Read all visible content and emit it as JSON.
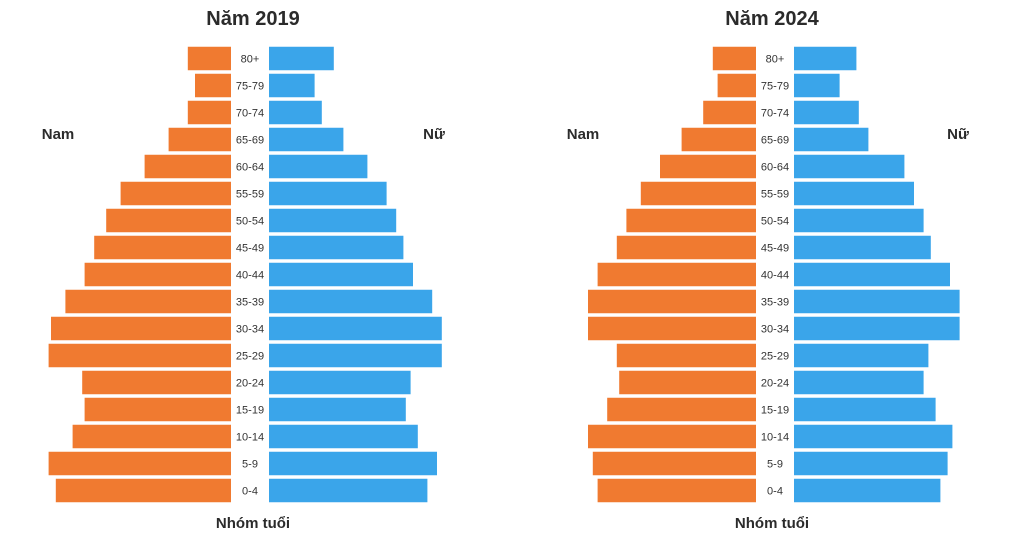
{
  "colors": {
    "male": "#f07a30",
    "female": "#3aa5ea"
  },
  "chart_data": [
    {
      "type": "bar",
      "orientation": "horizontal-population-pyramid",
      "title": "Năm 2019",
      "left_label": "Nam",
      "right_label": "Nữ",
      "xlabel": "Nhóm tuổi",
      "categories": [
        "80+",
        "75-79",
        "70-74",
        "65-69",
        "60-64",
        "55-59",
        "50-54",
        "45-49",
        "40-44",
        "35-39",
        "30-34",
        "25-29",
        "20-24",
        "15-19",
        "10-14",
        "5-9",
        "0-4"
      ],
      "series": [
        {
          "name": "Nam",
          "values": [
            0.9,
            0.75,
            0.9,
            1.3,
            1.8,
            2.3,
            2.6,
            2.85,
            3.05,
            3.45,
            3.75,
            3.8,
            3.1,
            3.05,
            3.3,
            3.8,
            3.65
          ]
        },
        {
          "name": "Nữ",
          "values": [
            1.35,
            0.95,
            1.1,
            1.55,
            2.05,
            2.45,
            2.65,
            2.8,
            3.0,
            3.4,
            3.6,
            3.6,
            2.95,
            2.85,
            3.1,
            3.5,
            3.3
          ]
        }
      ],
      "xlim": [
        0,
        4
      ],
      "grid": false
    },
    {
      "type": "bar",
      "orientation": "horizontal-population-pyramid",
      "title": "Năm 2024",
      "left_label": "Nam",
      "right_label": "Nữ",
      "xlabel": "Nhóm tuổi",
      "categories": [
        "80+",
        "75-79",
        "70-74",
        "65-69",
        "60-64",
        "55-59",
        "50-54",
        "45-49",
        "40-44",
        "35-39",
        "30-34",
        "25-29",
        "20-24",
        "15-19",
        "10-14",
        "5-9",
        "0-4"
      ],
      "series": [
        {
          "name": "Nam",
          "values": [
            0.9,
            0.8,
            1.1,
            1.55,
            2.0,
            2.4,
            2.7,
            2.9,
            3.3,
            3.5,
            3.5,
            2.9,
            2.85,
            3.1,
            3.5,
            3.4,
            3.3
          ]
        },
        {
          "name": "Nữ",
          "values": [
            1.3,
            0.95,
            1.35,
            1.55,
            2.3,
            2.5,
            2.7,
            2.85,
            3.25,
            3.45,
            3.45,
            2.8,
            2.7,
            2.95,
            3.3,
            3.2,
            3.05
          ]
        }
      ],
      "xlim": [
        0,
        4
      ],
      "grid": false
    }
  ]
}
